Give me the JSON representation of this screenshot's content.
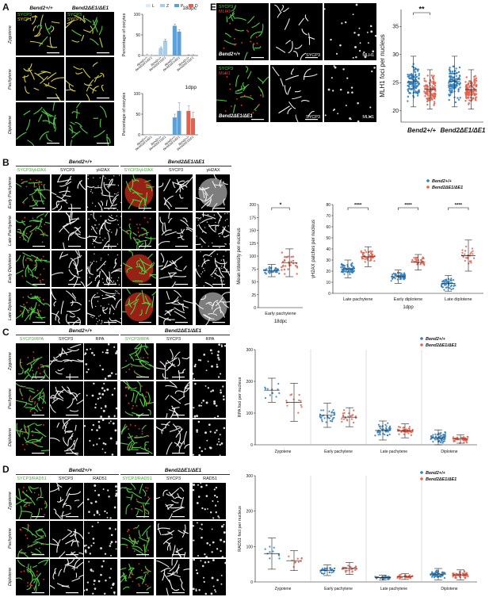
{
  "panels": {
    "A": {
      "label": "A",
      "genotypes": [
        "Bend2+/+",
        "Bend2ΔE1/ΔE1"
      ],
      "channels": [
        "SYCP3",
        "SYCP1"
      ],
      "rows": [
        "Zygotene",
        "Pachytene",
        "Diplotene"
      ]
    },
    "B": {
      "label": "B",
      "genotypes": [
        "Bend2+/+",
        "Bend2ΔE1/ΔE1"
      ],
      "columns": [
        "SYCP3/γH2AX",
        "SYCP3",
        "γH2AX"
      ],
      "rows": [
        "Early Pachytene",
        "Late Pachytene",
        "Early Diplotene",
        "Late Diplotene"
      ]
    },
    "C": {
      "label": "C",
      "genotypes": [
        "Bend2+/+",
        "Bend2ΔE1/ΔE1"
      ],
      "columns": [
        "SYCP3/RPA",
        "SYCP3",
        "RPA"
      ],
      "rows": [
        "Zygotene",
        "Pachytene",
        "Diplotene"
      ]
    },
    "D": {
      "label": "D",
      "genotypes": [
        "Bend2+/+",
        "Bend2ΔE1/ΔE1"
      ],
      "columns": [
        "SYCP3/RAD51",
        "SYCP3",
        "RAD51"
      ],
      "rows": [
        "Zygotene",
        "Pachytene",
        "Diplotene"
      ]
    },
    "E": {
      "label": "E",
      "genotypes": [
        "Bend2+/+",
        "Bend2ΔE1/ΔE1"
      ],
      "channels": [
        "SYCP3",
        "MLH1"
      ],
      "columns": [
        "SYCP3",
        "MLH1"
      ]
    }
  },
  "colors": {
    "wt": "#2f7fc1",
    "mut": "#e8604c",
    "L": "#dcebf7",
    "Z": "#a9cde9",
    "P": "#5d9fd7",
    "D": "#e8604c",
    "green": "#4fd040",
    "red": "#e83a2a",
    "yellow": "#e8d83a"
  },
  "chart_data": [
    {
      "id": "A-18dpc",
      "type": "bar",
      "title": "18dpc",
      "ylabel": "Percentage of oocytes",
      "ylim": [
        0,
        100
      ],
      "yticks": [
        0,
        50,
        100
      ],
      "legend": [
        "L",
        "Z",
        "P",
        "D"
      ],
      "groups": [
        "L",
        "Z",
        "P",
        "D"
      ],
      "categories": [
        "Bend2+/+",
        "Bend2ΔE1/ΔE1"
      ],
      "values": [
        [
          2,
          1
        ],
        [
          18,
          36
        ],
        [
          72,
          58
        ],
        [
          1,
          1
        ]
      ],
      "errors": [
        [
          1,
          1
        ],
        [
          3,
          4
        ],
        [
          4,
          5
        ],
        [
          1,
          1
        ]
      ]
    },
    {
      "id": "A-1dpp",
      "type": "bar",
      "title": "1dpp",
      "ylabel": "Percentage of oocytes",
      "ylim": [
        0,
        100
      ],
      "yticks": [
        0,
        50,
        100
      ],
      "groups": [
        "L",
        "Z",
        "P",
        "D"
      ],
      "categories": [
        "Bend2+/+",
        "Bend2ΔE1/ΔE1"
      ],
      "values": [
        [
          0,
          0
        ],
        [
          0,
          0
        ],
        [
          42,
          58
        ],
        [
          58,
          40
        ]
      ],
      "errors": [
        [
          0,
          0
        ],
        [
          0,
          0
        ],
        [
          8,
          20
        ],
        [
          12,
          15
        ]
      ]
    },
    {
      "id": "B-intensity",
      "type": "scatter",
      "ylabel": "Mean intensity per nucleus",
      "xlabel": "18dpc",
      "ylim": [
        0,
        200
      ],
      "yticks": [
        0,
        25,
        50,
        75,
        100,
        125,
        150,
        175,
        200
      ],
      "categories": [
        "Early pachytene"
      ],
      "significance": [
        "*"
      ],
      "series": [
        {
          "mean": 72,
          "sd": 12,
          "n": 30,
          "min": 42,
          "max": 105
        },
        {
          "mean": 87,
          "sd": 27,
          "n": 30,
          "min": 42,
          "max": 158
        }
      ]
    },
    {
      "id": "B-gH2AX",
      "type": "scatter",
      "ylabel": "γH2AX patches per nucleus",
      "xlabel": "1dpp",
      "ylim": [
        0,
        80
      ],
      "yticks": [
        0,
        10,
        20,
        30,
        40,
        50,
        60,
        70,
        80
      ],
      "legend": [
        "Bend2+/+",
        "Bend2ΔE1/ΔE1"
      ],
      "categories": [
        "Late pachytene",
        "Early diplotene",
        "Late diplotene"
      ],
      "significance": [
        "****",
        "****",
        "****"
      ],
      "series": [
        {
          "mean": [
            22,
            15,
            9
          ],
          "sd": [
            8,
            6,
            7
          ],
          "n": [
            70,
            60,
            45
          ],
          "min": [
            3,
            2,
            0
          ],
          "max": [
            40,
            30,
            30
          ]
        },
        {
          "mean": [
            33,
            28,
            34
          ],
          "sd": [
            9,
            7,
            14
          ],
          "n": [
            50,
            35,
            25
          ],
          "min": [
            14,
            12,
            8
          ],
          "max": [
            55,
            45,
            58
          ]
        }
      ]
    },
    {
      "id": "C-RPA",
      "type": "scatter",
      "ylabel": "RPA foci per nucleus",
      "ylim": [
        0,
        300
      ],
      "yticks": [
        0,
        100,
        200,
        300
      ],
      "legend": [
        "Bend2+/+",
        "Bend2ΔE1/ΔE1"
      ],
      "categories": [
        "Zygotene",
        "Early pachytene",
        "Late pachytene",
        "Diplotene"
      ],
      "series": [
        {
          "mean": [
            172,
            93,
            45,
            22
          ],
          "sd": [
            38,
            38,
            30,
            25
          ],
          "n": [
            12,
            30,
            45,
            60
          ],
          "min": [
            110,
            20,
            3,
            0
          ],
          "max": [
            240,
            180,
            150,
            125
          ]
        },
        {
          "mean": [
            134,
            87,
            44,
            18
          ],
          "sd": [
            60,
            30,
            22,
            13
          ],
          "n": [
            12,
            22,
            40,
            50
          ],
          "min": [
            40,
            35,
            8,
            0
          ],
          "max": [
            250,
            150,
            110,
            60
          ]
        }
      ]
    },
    {
      "id": "D-RAD51",
      "type": "scatter",
      "ylabel": "RAD51 foci per nucleus",
      "ylim": [
        0,
        300
      ],
      "yticks": [
        0,
        100,
        200,
        300
      ],
      "legend": [
        "Bend2+/+",
        "Bend2ΔE1/ΔE1"
      ],
      "categories": [
        "Zygotene",
        "Early pachytene",
        "Late pachytene",
        "Diplotene"
      ],
      "series": [
        {
          "mean": [
            80,
            33,
            12,
            22
          ],
          "sd": [
            44,
            15,
            7,
            16
          ],
          "n": [
            10,
            30,
            40,
            60
          ],
          "min": [
            20,
            5,
            0,
            0
          ],
          "max": [
            190,
            75,
            35,
            80
          ]
        },
        {
          "mean": [
            60,
            38,
            15,
            20
          ],
          "sd": [
            28,
            17,
            8,
            14
          ],
          "n": [
            10,
            25,
            35,
            50
          ],
          "min": [
            20,
            10,
            0,
            0
          ],
          "max": [
            125,
            80,
            40,
            75
          ]
        }
      ]
    },
    {
      "id": "E-MLH1",
      "type": "scatter",
      "ylabel": "MLH1 foci per nucleus",
      "ylim": [
        18,
        38
      ],
      "yticks": [
        20,
        25,
        30,
        35
      ],
      "categories": [
        "Bend2+/+",
        "Bend2ΔE1/ΔE1"
      ],
      "significance": [
        "**"
      ],
      "series": [
        {
          "mean": 25.2,
          "sd": 4.5,
          "n": 120,
          "min": 20,
          "max": 36
        },
        {
          "mean": 23.8,
          "sd": 3.5,
          "n": 120,
          "min": 20,
          "max": 33
        }
      ]
    }
  ]
}
